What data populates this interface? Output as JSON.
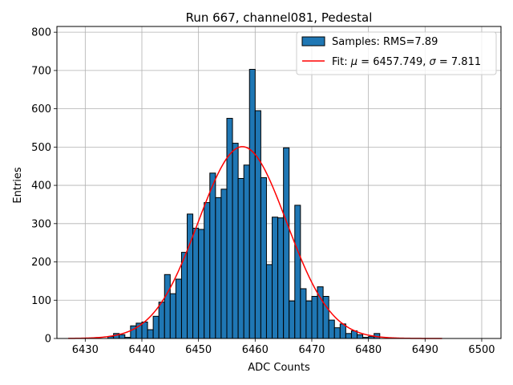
{
  "chart_data": {
    "type": "bar",
    "title": "Run 667, channel081, Pedestal",
    "xlabel": "ADC Counts",
    "ylabel": "Entries",
    "xlim": [
      6425,
      6503.4
    ],
    "ylim": [
      0,
      815
    ],
    "xticks": [
      6430,
      6440,
      6450,
      6460,
      6470,
      6480,
      6490,
      6500
    ],
    "yticks": [
      0,
      100,
      200,
      300,
      400,
      500,
      600,
      700,
      800
    ],
    "grid": true,
    "legend_position": "top-right",
    "bin_width": 1,
    "bins": {
      "left_edges": [
        6434,
        6435,
        6436,
        6437,
        6438,
        6439,
        6440,
        6441,
        6442,
        6443,
        6444,
        6445,
        6446,
        6447,
        6448,
        6449,
        6450,
        6451,
        6452,
        6453,
        6454,
        6455,
        6456,
        6457,
        6458,
        6459,
        6460,
        6461,
        6462,
        6463,
        6464,
        6465,
        6466,
        6467,
        6468,
        6469,
        6470,
        6471,
        6472,
        6473,
        6474,
        6475,
        6476,
        6477,
        6478,
        6479,
        6480,
        6481
      ],
      "counts": [
        5,
        13,
        10,
        3,
        33,
        40,
        43,
        23,
        58,
        95,
        167,
        117,
        155,
        225,
        325,
        288,
        285,
        355,
        432,
        368,
        390,
        575,
        510,
        418,
        453,
        703,
        595,
        420,
        193,
        317,
        315,
        498,
        98,
        348,
        130,
        98,
        110,
        135,
        110,
        48,
        28,
        38,
        13,
        20,
        10,
        3,
        5,
        13
      ]
    },
    "series": [
      {
        "name": "Samples: RMS=7.89",
        "type": "histogram",
        "color": "#1f77b4",
        "edgecolor": "#000000"
      },
      {
        "name": "Fit: μ = 6457.749, σ = 7.811",
        "type": "line",
        "color": "#ff0000",
        "mu": 6457.749,
        "sigma": 7.811,
        "peak": 501,
        "x_range": [
          6427,
          6493
        ]
      }
    ],
    "legend": {
      "label_samples_prefix": "Samples: RMS=7.89",
      "label_fit_prefix": "Fit: ",
      "label_fit_mu_symbol": "μ",
      "label_fit_mu_value": " = 6457.749, ",
      "label_fit_sigma_symbol": "σ",
      "label_fit_sigma_value": " = 7.811"
    }
  }
}
